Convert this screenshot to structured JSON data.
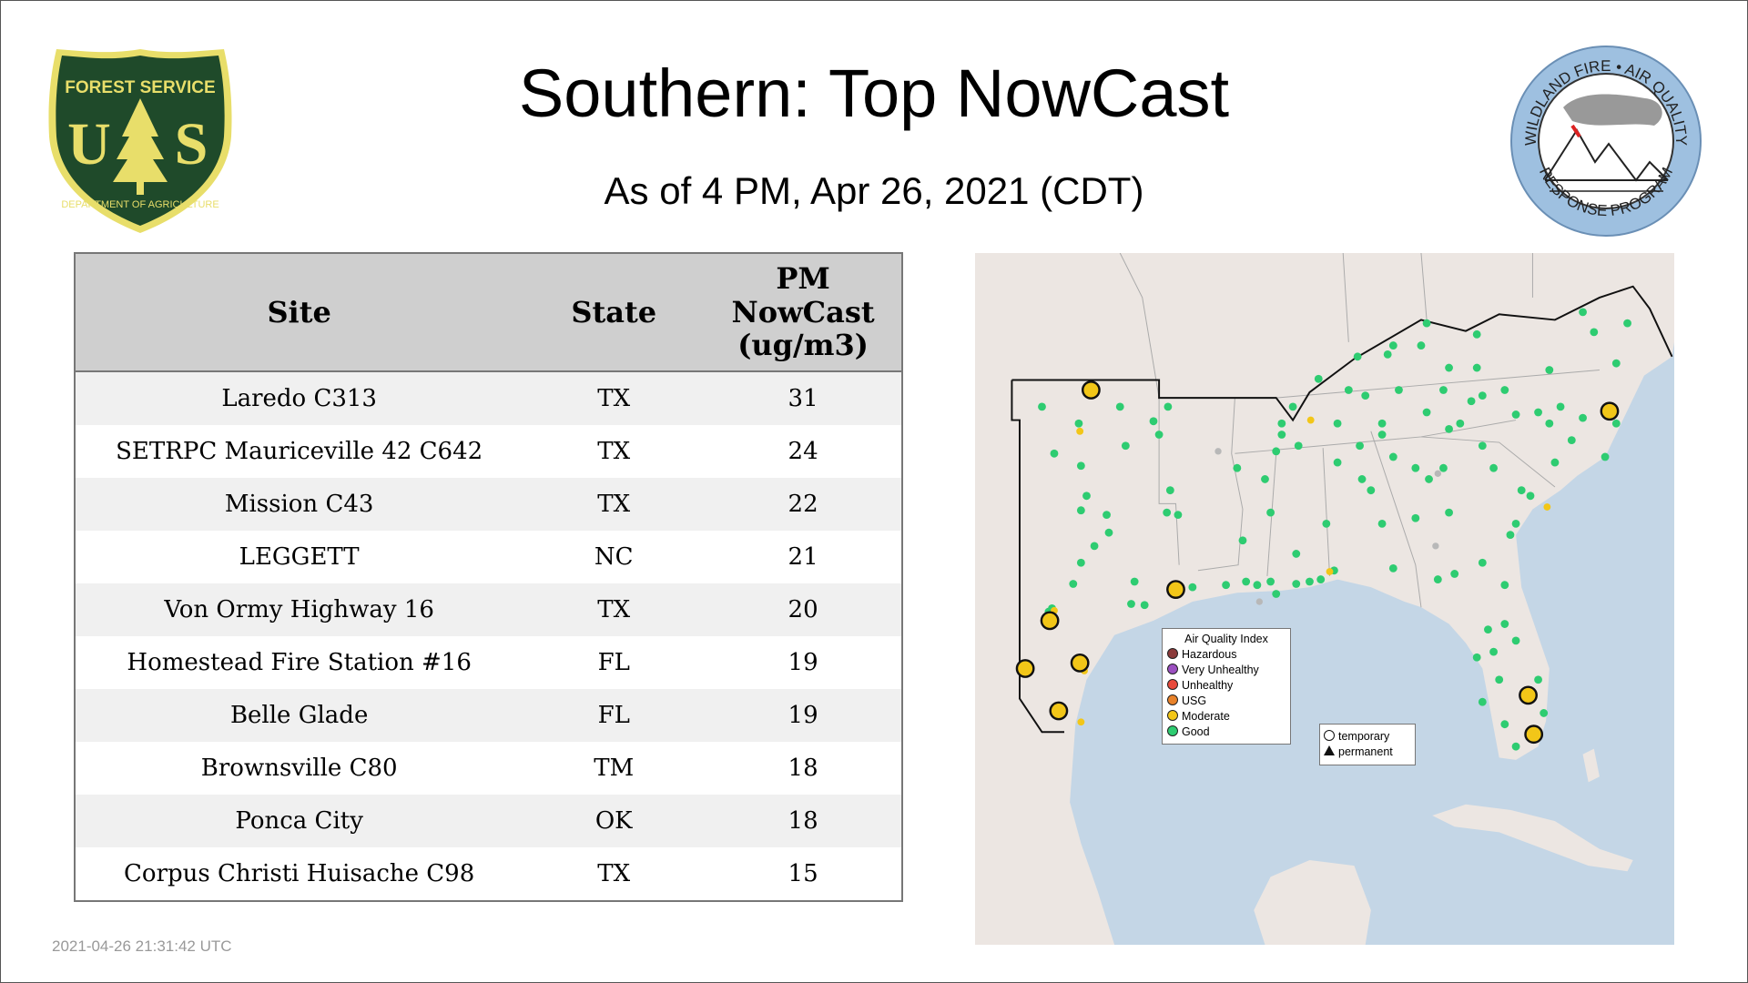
{
  "header": {
    "title": "Southern: Top NowCast",
    "subtitle": "As of  4 PM, Apr 26, 2021 (CDT)"
  },
  "logos": {
    "left": {
      "name": "US Forest Service shield",
      "text": [
        "FOREST SERVICE",
        "U",
        "S",
        "DEPARTMENT OF AGRICULTURE"
      ],
      "colors": {
        "shield": "#1f4a2a",
        "trim": "#e8de6a"
      }
    },
    "right": {
      "name": "Wildland Fire Air Quality Response Program",
      "text": [
        "WILDLAND FIRE",
        "AIR QUALITY",
        "RESPONSE PROGRAM"
      ],
      "colors": {
        "ring": "#9ec0e0"
      }
    }
  },
  "table": {
    "headers": [
      "Site",
      "State",
      "PM\nNowCast\n(ug/m3)"
    ],
    "header_lines": [
      "PM",
      "NowCast",
      "(ug/m3)"
    ],
    "rows": [
      {
        "site": "Laredo C313",
        "state": "TX",
        "value": "31"
      },
      {
        "site": "SETRPC Mauriceville 42 C642",
        "state": "TX",
        "value": "24"
      },
      {
        "site": "Mission C43",
        "state": "TX",
        "value": "22"
      },
      {
        "site": "LEGGETT",
        "state": "NC",
        "value": "21"
      },
      {
        "site": "Von Ormy Highway 16",
        "state": "TX",
        "value": "20"
      },
      {
        "site": "Homestead Fire Station #16",
        "state": "FL",
        "value": "19"
      },
      {
        "site": "Belle Glade",
        "state": "FL",
        "value": "19"
      },
      {
        "site": "Brownsville C80",
        "state": "TM",
        "value": "18"
      },
      {
        "site": "Ponca City",
        "state": "OK",
        "value": "18"
      },
      {
        "site": "Corpus Christi Huisache C98",
        "state": "TX",
        "value": "15"
      }
    ]
  },
  "map": {
    "legend_aqi": {
      "title": "Air Quality Index",
      "items": [
        {
          "label": "Hazardous",
          "color": "#8b3a3a"
        },
        {
          "label": "Very Unhealthy",
          "color": "#9b4fc0"
        },
        {
          "label": "Unhealthy",
          "color": "#e84a3c"
        },
        {
          "label": "USG",
          "color": "#e8822a"
        },
        {
          "label": "Moderate",
          "color": "#f2c618"
        },
        {
          "label": "Good",
          "color": "#2ecc71"
        }
      ]
    },
    "legend_type": {
      "items": [
        {
          "label": "temporary",
          "symbol": "circle"
        },
        {
          "label": "permanent",
          "symbol": "triangle"
        }
      ]
    },
    "colors": {
      "water": "#c4d6e6",
      "land": "#ece6e2",
      "good": "#2ecc71",
      "moderate": "#f2c618",
      "nodata": "#b8b8b8"
    }
  },
  "footer": {
    "timestamp": "2021-04-26 21:31:42 UTC"
  }
}
